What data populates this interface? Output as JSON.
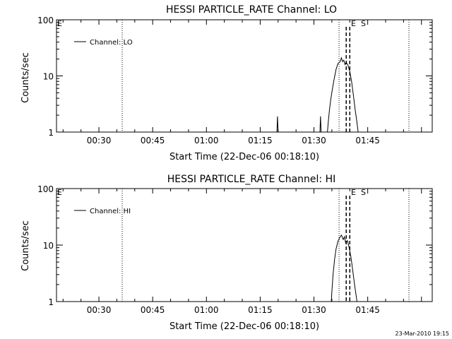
{
  "footer": {
    "timestamp": "23-Mar-2010 19:15"
  },
  "chart_data": [
    {
      "type": "line",
      "title": "HESSI PARTICLE_RATE Channel: LO",
      "xlabel": "Start Time (22-Dec-06 00:18:10)",
      "ylabel": "Counts/sec",
      "x_tick_labels": [
        "00:30",
        "00:45",
        "01:00",
        "01:15",
        "01:30",
        "01:45"
      ],
      "y_tick_labels": [
        "1",
        "10",
        "100"
      ],
      "xlim": [
        "00:18:10",
        "02:03:00"
      ],
      "ylim": [
        1,
        100
      ],
      "ylog": true,
      "grid": false,
      "legend": {
        "label": "Channel: LO",
        "position": "top-left"
      },
      "event_markers": {
        "E": "01:37:00",
        "S": "01:39:00",
        "dashed": [
          "01:39:00",
          "01:40:00"
        ]
      },
      "dotted_lines": [
        "00:36:30",
        "01:37:00",
        "01:56:30"
      ],
      "series": [
        {
          "name": "Channel: LO",
          "points": [
            [
              "01:19:40",
              1.0
            ],
            [
              "01:19:50",
              1.9
            ],
            [
              "01:20:00",
              1.0
            ],
            [
              "01:31:40",
              1.0
            ],
            [
              "01:31:50",
              1.9
            ],
            [
              "01:32:00",
              1.0
            ],
            [
              "01:33:45",
              1.0
            ],
            [
              "01:34:00",
              1.5
            ],
            [
              "01:34:20",
              2.5
            ],
            [
              "01:34:45",
              4.0
            ],
            [
              "01:35:10",
              6.0
            ],
            [
              "01:35:40",
              9.0
            ],
            [
              "01:36:10",
              13.0
            ],
            [
              "01:36:40",
              16.5
            ],
            [
              "01:37:20",
              18.0
            ],
            [
              "01:37:40",
              21.0
            ],
            [
              "01:38:00",
              18.0
            ],
            [
              "01:38:20",
              19.0
            ],
            [
              "01:38:40",
              16.0
            ],
            [
              "01:39:00",
              17.5
            ],
            [
              "01:39:30",
              15.5
            ],
            [
              "01:40:00",
              12.0
            ],
            [
              "01:40:30",
              8.0
            ],
            [
              "01:41:00",
              4.5
            ],
            [
              "01:41:30",
              2.5
            ],
            [
              "01:42:00",
              1.5
            ],
            [
              "01:42:20",
              1.0
            ]
          ]
        }
      ]
    },
    {
      "type": "line",
      "title": "HESSI PARTICLE_RATE Channel: HI",
      "xlabel": "Start Time (22-Dec-06 00:18:10)",
      "ylabel": "Counts/sec",
      "x_tick_labels": [
        "00:30",
        "00:45",
        "01:00",
        "01:15",
        "01:30",
        "01:45"
      ],
      "y_tick_labels": [
        "1",
        "10",
        "100"
      ],
      "xlim": [
        "00:18:10",
        "02:03:00"
      ],
      "ylim": [
        1,
        100
      ],
      "ylog": true,
      "grid": false,
      "legend": {
        "label": "Channel: HI",
        "position": "top-left"
      },
      "event_markers": {
        "E": "01:37:00",
        "S": "01:39:00",
        "dashed": [
          "01:39:00",
          "01:40:00"
        ]
      },
      "dotted_lines": [
        "00:36:30",
        "01:37:00",
        "01:56:30"
      ],
      "series": [
        {
          "name": "Channel: HI",
          "points": [
            [
              "01:34:50",
              1.0
            ],
            [
              "01:35:00",
              1.5
            ],
            [
              "01:35:20",
              3.0
            ],
            [
              "01:35:45",
              5.5
            ],
            [
              "01:36:10",
              8.5
            ],
            [
              "01:36:40",
              11.5
            ],
            [
              "01:37:10",
              13.5
            ],
            [
              "01:37:40",
              15.0
            ],
            [
              "01:38:10",
              12.5
            ],
            [
              "01:38:30",
              14.0
            ],
            [
              "01:38:50",
              11.0
            ],
            [
              "01:39:20",
              12.0
            ],
            [
              "01:39:50",
              9.0
            ],
            [
              "01:40:20",
              6.0
            ],
            [
              "01:40:50",
              3.5
            ],
            [
              "01:41:20",
              2.0
            ],
            [
              "01:41:50",
              1.2
            ],
            [
              "01:42:00",
              1.0
            ]
          ]
        }
      ]
    }
  ]
}
